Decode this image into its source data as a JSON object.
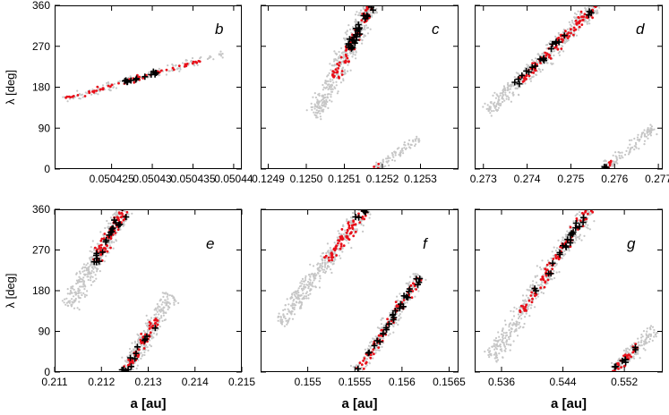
{
  "chart_data": [
    {
      "panel": "b",
      "type": "scatter",
      "row": 0,
      "col": 0,
      "xlim": [
        0.050418,
        0.050441
      ],
      "xticks": [
        0.050425,
        0.05043,
        0.050435,
        0.05044
      ],
      "xtick_labels": [
        "0.050425",
        "0.05043",
        "0.050435",
        "0.05044"
      ],
      "ylim": [
        0,
        360
      ],
      "yticks": [
        0,
        90,
        180,
        270,
        360
      ],
      "ytick_labels": [
        "0",
        "90",
        "180",
        "270",
        "360"
      ],
      "xlabel": "",
      "ylabel": "λ [deg]",
      "streaks": [
        {
          "x0": 0.050419,
          "y0": 152,
          "x1": 0.050439,
          "y1": 255,
          "n_gray": 140,
          "n_red": 60,
          "n_black": 14,
          "width": 7,
          "red_range": [
            0.02,
            0.85
          ],
          "black_range": [
            0.35,
            0.58
          ]
        }
      ]
    },
    {
      "panel": "c",
      "type": "scatter",
      "row": 0,
      "col": 1,
      "xlim": [
        0.12488,
        0.1254
      ],
      "xticks": [
        0.1249,
        0.125,
        0.1251,
        0.1252,
        0.1253
      ],
      "xtick_labels": [
        "0.1249",
        "0.1250",
        "0.1251",
        "0.1252",
        "0.1253"
      ],
      "ylim": [
        0,
        360
      ],
      "yticks": [
        0,
        90,
        180,
        270,
        360
      ],
      "ytick_labels": [
        "",
        "",
        "",
        "",
        ""
      ],
      "xlabel": "",
      "ylabel": "",
      "streaks": [
        {
          "x0": 0.12502,
          "y0": 115,
          "x1": 0.12517,
          "y1": 360,
          "n_gray": 420,
          "n_red": 90,
          "n_black": 26,
          "width": 15,
          "red_range": [
            0.35,
            1.0
          ],
          "black_range": [
            0.55,
            1.0
          ]
        },
        {
          "x0": 0.12518,
          "y0": 0,
          "x1": 0.1253,
          "y1": 70,
          "n_gray": 90,
          "n_red": 4,
          "n_black": 0,
          "width": 8,
          "red_range": [
            0.0,
            0.12
          ],
          "black_range": [
            0,
            0
          ]
        }
      ]
    },
    {
      "panel": "d",
      "type": "scatter",
      "row": 0,
      "col": 2,
      "xlim": [
        0.2728,
        0.2771
      ],
      "xticks": [
        0.273,
        0.274,
        0.275,
        0.276,
        0.277
      ],
      "xtick_labels": [
        "0.273",
        "0.274",
        "0.275",
        "0.276",
        "0.277"
      ],
      "ylim": [
        0,
        360
      ],
      "yticks": [
        0,
        90,
        180,
        270,
        360
      ],
      "ytick_labels": [
        "",
        "",
        "",
        "",
        ""
      ],
      "xlabel": "",
      "ylabel": "",
      "streaks": [
        {
          "x0": 0.2731,
          "y0": 125,
          "x1": 0.2756,
          "y1": 360,
          "n_gray": 420,
          "n_red": 110,
          "n_black": 22,
          "width": 14,
          "red_range": [
            0.3,
            1.0
          ],
          "black_range": [
            0.25,
            0.95
          ]
        },
        {
          "x0": 0.27575,
          "y0": 0,
          "x1": 0.2769,
          "y1": 90,
          "n_gray": 120,
          "n_red": 10,
          "n_black": 3,
          "width": 9,
          "red_range": [
            0.0,
            0.22
          ],
          "black_range": [
            0.0,
            0.15
          ]
        }
      ]
    },
    {
      "panel": "e",
      "type": "scatter",
      "row": 1,
      "col": 0,
      "xlim": [
        0.211,
        0.215
      ],
      "xticks": [
        0.211,
        0.212,
        0.213,
        0.214,
        0.215
      ],
      "xtick_labels": [
        "0.211",
        "0.212",
        "0.213",
        "0.214",
        "0.215"
      ],
      "ylim": [
        0,
        360
      ],
      "yticks": [
        0,
        90,
        180,
        270,
        360
      ],
      "ytick_labels": [
        "0",
        "90",
        "180",
        "270",
        "360"
      ],
      "xlabel": "a [au]",
      "ylabel": "λ [deg]",
      "streaks": [
        {
          "x0": 0.2113,
          "y0": 145,
          "x1": 0.2125,
          "y1": 360,
          "n_gray": 360,
          "n_red": 80,
          "n_black": 20,
          "width": 15,
          "red_range": [
            0.45,
            1.0
          ],
          "black_range": [
            0.45,
            1.0
          ]
        },
        {
          "x0": 0.2125,
          "y0": 0,
          "x1": 0.2135,
          "y1": 170,
          "n_gray": 300,
          "n_red": 60,
          "n_black": 14,
          "width": 14,
          "red_range": [
            0.0,
            0.7
          ],
          "black_range": [
            0.0,
            0.7
          ]
        }
      ]
    },
    {
      "panel": "f",
      "type": "scatter",
      "row": 1,
      "col": 1,
      "xlim": [
        0.1545,
        0.1566
      ],
      "xticks": [
        0.155,
        0.1555,
        0.156,
        0.1565
      ],
      "xtick_labels": [
        "0.155",
        "0.1555",
        "0.156",
        "0.1565"
      ],
      "ylim": [
        0,
        360
      ],
      "yticks": [
        0,
        90,
        180,
        270,
        360
      ],
      "ytick_labels": [
        "",
        "",
        "",
        "",
        ""
      ],
      "xlabel": "a [au]",
      "ylabel": "",
      "streaks": [
        {
          "x0": 0.1547,
          "y0": 110,
          "x1": 0.15562,
          "y1": 360,
          "n_gray": 380,
          "n_red": 80,
          "n_black": 6,
          "width": 15,
          "red_range": [
            0.55,
            1.0
          ],
          "black_range": [
            0.85,
            1.0
          ]
        },
        {
          "x0": 0.15553,
          "y0": 0,
          "x1": 0.1562,
          "y1": 215,
          "n_gray": 260,
          "n_red": 80,
          "n_black": 28,
          "width": 12,
          "red_range": [
            0.0,
            0.98
          ],
          "black_range": [
            0.0,
            0.98
          ]
        }
      ]
    },
    {
      "panel": "g",
      "type": "scatter",
      "row": 1,
      "col": 2,
      "xlim": [
        0.5325,
        0.557
      ],
      "xticks": [
        0.536,
        0.544,
        0.552
      ],
      "xtick_labels": [
        "0.536",
        "0.544",
        "0.552"
      ],
      "ylim": [
        0,
        360
      ],
      "yticks": [
        0,
        90,
        180,
        270,
        360
      ],
      "ytick_labels": [
        "",
        "",
        "",
        "",
        ""
      ],
      "xlabel": "a [au]",
      "ylabel": "",
      "streaks": [
        {
          "x0": 0.5347,
          "y0": 30,
          "x1": 0.5474,
          "y1": 360,
          "n_gray": 460,
          "n_red": 100,
          "n_black": 22,
          "width": 15,
          "red_range": [
            0.3,
            1.0
          ],
          "black_range": [
            0.45,
            1.0
          ]
        },
        {
          "x0": 0.5505,
          "y0": 0,
          "x1": 0.556,
          "y1": 95,
          "n_gray": 160,
          "n_red": 35,
          "n_black": 8,
          "width": 11,
          "red_range": [
            0.0,
            0.6
          ],
          "black_range": [
            0.0,
            0.6
          ]
        }
      ]
    }
  ],
  "colors": {
    "gray": "#c6c6c6",
    "red": "#e8101a",
    "black": "#000000"
  }
}
